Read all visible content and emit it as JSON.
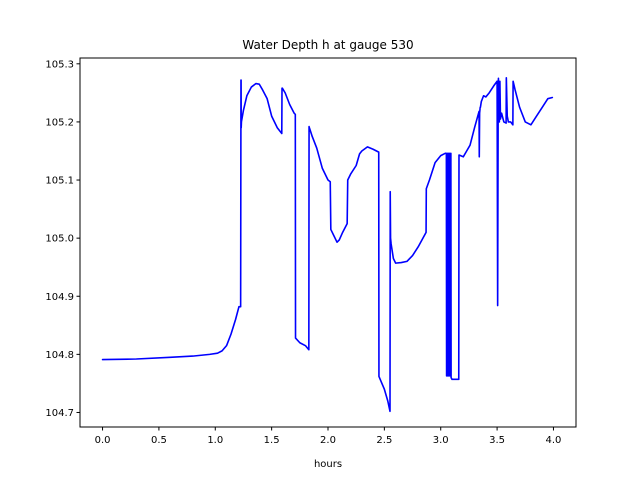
{
  "chart_data": {
    "type": "line",
    "title": "Water Depth h at gauge 530",
    "xlabel": "hours",
    "ylabel": "",
    "xlim": [
      -0.2,
      4.2
    ],
    "ylim": [
      104.675,
      105.31
    ],
    "xticks": [
      0.0,
      0.5,
      1.0,
      1.5,
      2.0,
      2.5,
      3.0,
      3.5,
      4.0
    ],
    "xtick_labels": [
      "0.0",
      "0.5",
      "1.0",
      "1.5",
      "2.0",
      "2.5",
      "3.0",
      "3.5",
      "4.0"
    ],
    "yticks": [
      104.7,
      104.8,
      104.9,
      105.0,
      105.1,
      105.2,
      105.3
    ],
    "ytick_labels": [
      "104.7",
      "104.8",
      "104.9",
      "105.0",
      "105.1",
      "105.2",
      "105.3"
    ],
    "grid": false,
    "series": [
      {
        "color": "#0000ff",
        "x": [
          0.0,
          0.3,
          0.6,
          0.8,
          0.95,
          1.02,
          1.06,
          1.1,
          1.14,
          1.18,
          1.21,
          1.225,
          1.228,
          1.229,
          1.23,
          1.232,
          1.25,
          1.28,
          1.32,
          1.36,
          1.39,
          1.42,
          1.46,
          1.5,
          1.55,
          1.59,
          1.592,
          1.595,
          1.62,
          1.66,
          1.7,
          1.71,
          1.712,
          1.75,
          1.8,
          1.83,
          1.832,
          1.835,
          1.86,
          1.9,
          1.95,
          2.0,
          2.02,
          2.025,
          2.05,
          2.08,
          2.1,
          2.13,
          2.17,
          2.175,
          2.2,
          2.25,
          2.28,
          2.3,
          2.35,
          2.4,
          2.45,
          2.452,
          2.5,
          2.53,
          2.55,
          2.552,
          2.555,
          2.56,
          2.58,
          2.6,
          2.65,
          2.7,
          2.75,
          2.8,
          2.87,
          2.872,
          2.9,
          2.95,
          3.0,
          3.04,
          3.05,
          3.052,
          3.06,
          3.062,
          3.07,
          3.072,
          3.08,
          3.082,
          3.09,
          3.092,
          3.1,
          3.16,
          3.162,
          3.2,
          3.23,
          3.26,
          3.3,
          3.34,
          3.342,
          3.345,
          3.35,
          3.352,
          3.36,
          3.38,
          3.4,
          3.43,
          3.47,
          3.5,
          3.505,
          3.51,
          3.512,
          3.52,
          3.525,
          3.53,
          3.54,
          3.56,
          3.58,
          3.582,
          3.59,
          3.6,
          3.62,
          3.64,
          3.642,
          3.66,
          3.7,
          3.75,
          3.8,
          3.85,
          3.9,
          3.95,
          3.99
        ],
        "y": [
          104.791,
          104.792,
          104.795,
          104.797,
          104.8,
          104.802,
          104.806,
          104.815,
          104.835,
          104.86,
          104.882,
          104.882,
          105.272,
          105.272,
          105.19,
          105.2,
          105.22,
          105.245,
          105.26,
          105.266,
          105.265,
          105.255,
          105.24,
          105.21,
          105.19,
          105.18,
          105.258,
          105.258,
          105.25,
          105.23,
          105.215,
          105.213,
          104.828,
          104.82,
          104.815,
          104.808,
          105.192,
          105.19,
          105.175,
          105.155,
          105.12,
          105.1,
          105.097,
          105.015,
          105.005,
          104.993,
          104.997,
          105.01,
          105.025,
          105.1,
          105.11,
          105.125,
          105.145,
          105.15,
          105.157,
          105.153,
          105.148,
          104.762,
          104.74,
          104.72,
          104.702,
          105.08,
          105.0,
          104.99,
          104.965,
          104.957,
          104.958,
          104.96,
          104.97,
          104.985,
          105.01,
          105.085,
          105.1,
          105.13,
          105.142,
          105.146,
          105.146,
          104.763,
          105.146,
          104.763,
          105.146,
          104.763,
          105.146,
          104.763,
          105.146,
          104.76,
          104.757,
          104.757,
          105.143,
          105.14,
          105.15,
          105.16,
          105.19,
          105.218,
          105.14,
          105.215,
          105.225,
          105.225,
          105.235,
          105.245,
          105.243,
          105.25,
          105.262,
          105.27,
          104.884,
          105.262,
          105.275,
          105.2,
          105.27,
          105.205,
          105.215,
          105.2,
          105.198,
          105.276,
          105.21,
          105.2,
          105.2,
          105.195,
          105.27,
          105.255,
          105.225,
          105.2,
          105.195,
          105.21,
          105.225,
          105.24,
          105.242
        ]
      }
    ]
  }
}
